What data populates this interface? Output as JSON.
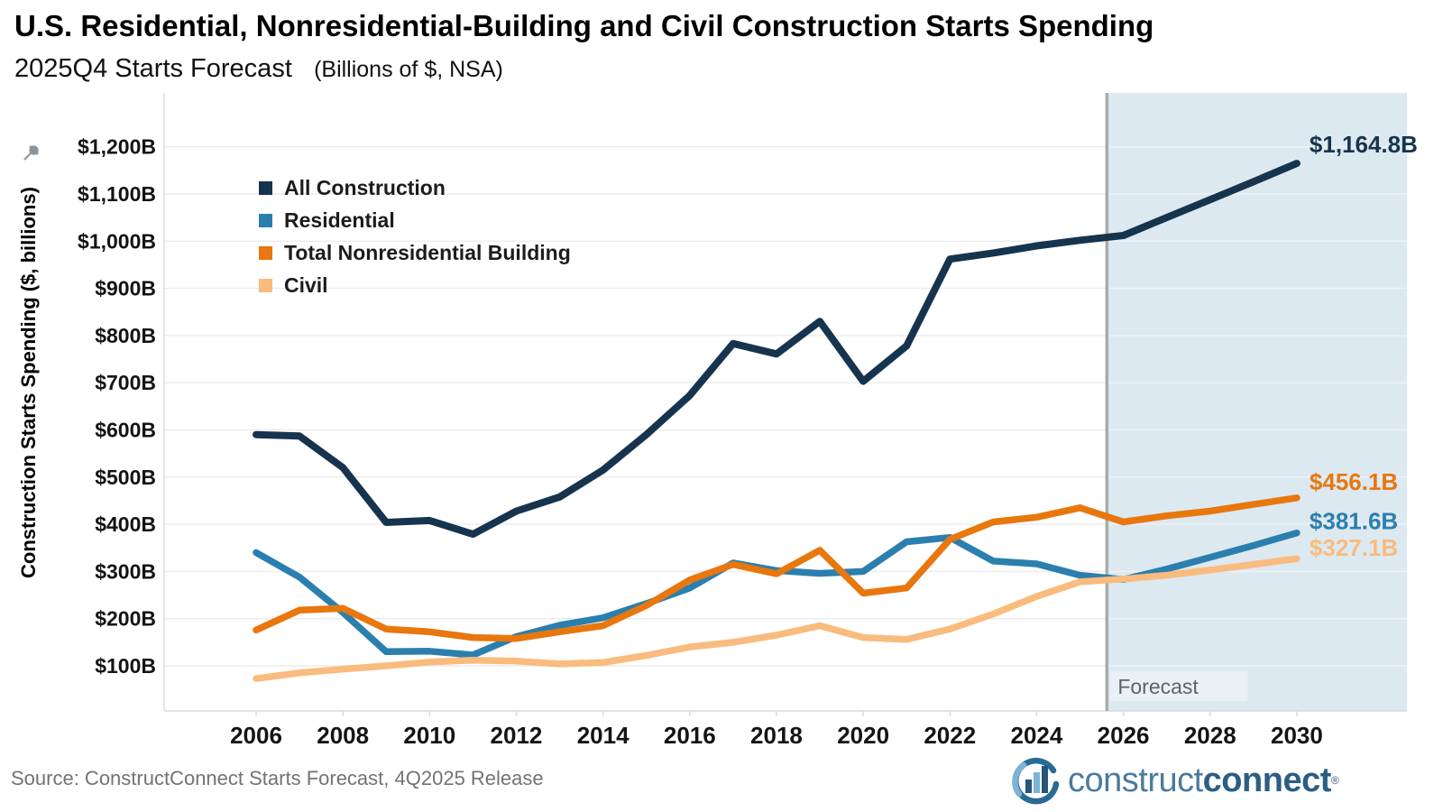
{
  "header": {
    "title": "U.S. Residential, Nonresidential-Building and Civil Construction Starts Spending",
    "subtitle": "2025Q4 Starts Forecast",
    "subtitle_note": "(Billions of $, NSA)"
  },
  "y_axis": {
    "title": "Construction Starts Spending ($, billions)",
    "tick_labels": [
      "$100B",
      "$200B",
      "$300B",
      "$400B",
      "$500B",
      "$600B",
      "$700B",
      "$800B",
      "$900B",
      "$1,000B",
      "$1,100B",
      "$1,200B"
    ],
    "tick_values": [
      100,
      200,
      300,
      400,
      500,
      600,
      700,
      800,
      900,
      1000,
      1100,
      1200
    ]
  },
  "x_axis": {
    "tick_years": [
      2006,
      2008,
      2010,
      2012,
      2014,
      2016,
      2018,
      2020,
      2022,
      2024,
      2026,
      2028,
      2030
    ]
  },
  "forecast": {
    "label": "Forecast",
    "boundary_year": 2025.62,
    "band_color": "#dde9f0",
    "line_color": "#a6abad",
    "label_box_color": "#e9f1f6",
    "label_text_color": "#5c6468"
  },
  "chart_data": {
    "type": "line",
    "title": "U.S. Residential, Nonresidential-Building and Civil Construction Starts Spending",
    "subtitle": "2025Q4 Starts Forecast (Billions of $, NSA)",
    "xlabel": "",
    "ylabel": "Construction Starts Spending ($, billions)",
    "x_years": [
      2006,
      2007,
      2008,
      2009,
      2010,
      2011,
      2012,
      2013,
      2014,
      2015,
      2016,
      2017,
      2018,
      2019,
      2020,
      2021,
      2022,
      2023,
      2024,
      2025,
      2026,
      2027,
      2028,
      2029,
      2030
    ],
    "ylim": [
      0,
      1300
    ],
    "grid": true,
    "legend_position": "upper-left-inside",
    "forecast_start_year": 2026,
    "series": [
      {
        "name": "All Construction",
        "color": "#17344f",
        "stroke_width": 8,
        "values": [
          590,
          587,
          520,
          404,
          408,
          379,
          428,
          458,
          515,
          590,
          673,
          783,
          761,
          830,
          703,
          778,
          962,
          975,
          990,
          1002,
          1012,
          1050,
          1088,
          1126,
          1164.8
        ],
        "end_label": "$1,164.8B"
      },
      {
        "name": "Residential",
        "color": "#2b7fae",
        "stroke_width": 7.5,
        "values": [
          340,
          288,
          213,
          130,
          131,
          123,
          162,
          186,
          202,
          232,
          265,
          318,
          302,
          296,
          300,
          363,
          372,
          322,
          316,
          292,
          283,
          305,
          330,
          355,
          381.6
        ],
        "end_label": "$381.6B"
      },
      {
        "name": "Total Nonresidential Building",
        "color": "#e8770d",
        "stroke_width": 7.5,
        "values": [
          176,
          218,
          222,
          178,
          172,
          160,
          158,
          172,
          185,
          228,
          282,
          315,
          295,
          345,
          254,
          265,
          368,
          405,
          415,
          435,
          405,
          418,
          428,
          442,
          456.1
        ],
        "end_label": "$456.1B"
      },
      {
        "name": "Civil",
        "color": "#f9bb7e",
        "stroke_width": 7.5,
        "values": [
          73,
          85,
          93,
          100,
          108,
          112,
          110,
          104,
          107,
          122,
          140,
          150,
          165,
          185,
          160,
          156,
          178,
          210,
          247,
          278,
          284,
          292,
          303,
          315,
          327.1
        ],
        "end_label": "$327.1B"
      }
    ]
  },
  "footer": {
    "source": "Source: ConstructConnect Starts Forecast, 4Q2025 Release",
    "logo_construct": "construct",
    "logo_connect": "connect",
    "logo_reg": "®"
  }
}
